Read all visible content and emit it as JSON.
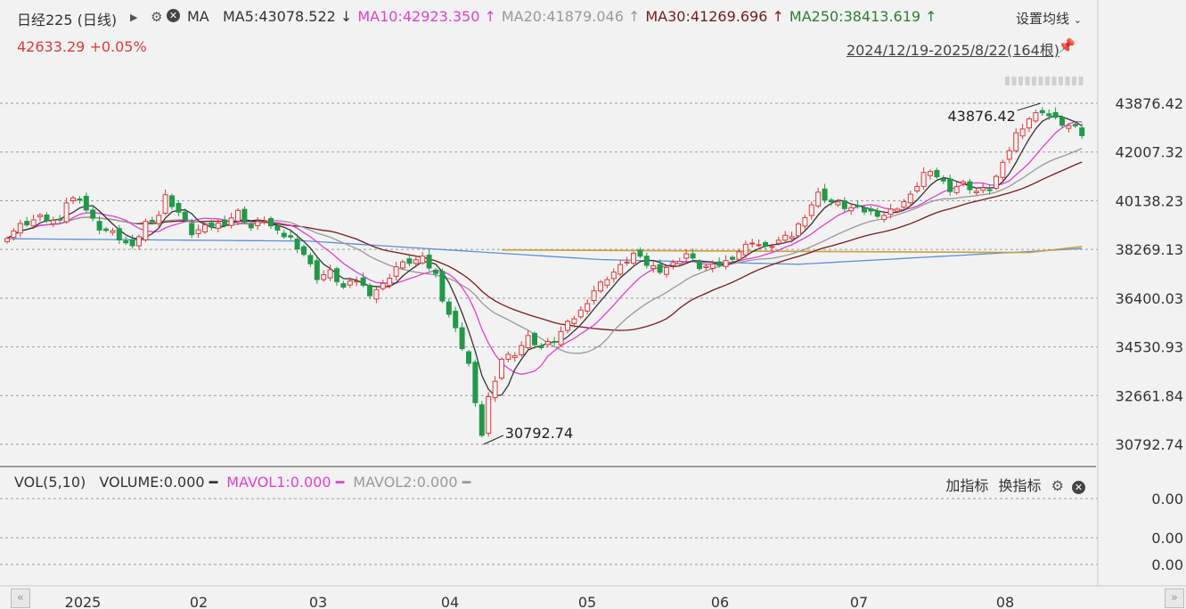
{
  "header": {
    "instrument": "日经225 (日线)",
    "indicator": "MA",
    "settings_label": "设置均线",
    "ma_items": [
      {
        "label": "MA5:43078.522 ↓",
        "color": "#333333"
      },
      {
        "label": "MA10:42923.350 ↑",
        "color": "#e040d0"
      },
      {
        "label": "MA20:41879.046 ↑",
        "color": "#999999"
      },
      {
        "label": "MA30:41269.696 ↑",
        "color": "#7a1a1a"
      },
      {
        "label": "MA250:38413.619 ↑",
        "color": "#2e7d32"
      }
    ]
  },
  "price_info": {
    "last": "42633.29",
    "change": "+0.05%"
  },
  "range_info": "2024/12/19-2025/8/22(164根)",
  "volume_panel": {
    "title": "VOL(5,10)",
    "items": [
      {
        "label": "VOLUME:0.000",
        "color": "#333333"
      },
      {
        "label": "MAVOL1:0.000",
        "color": "#e040d0"
      },
      {
        "label": "MAVOL2:0.000",
        "color": "#999999"
      }
    ],
    "add_indicator": "加指标",
    "switch_indicator": "换指标",
    "y_ticks": [
      "0.00",
      "0.00",
      "0.00"
    ]
  },
  "chart_data": {
    "type": "candlestick",
    "y_ticks": [
      "43876.42",
      "42007.32",
      "40138.23",
      "38269.13",
      "36400.03",
      "34530.93",
      "32661.84",
      "30792.74"
    ],
    "ylim": [
      30792.74,
      43876.42
    ],
    "x_labels": [
      "2025",
      "02",
      "03",
      "04",
      "05",
      "06",
      "07",
      "08"
    ],
    "annotations": [
      {
        "text": "43876.42",
        "type": "high"
      },
      {
        "text": "30792.74",
        "type": "low"
      }
    ],
    "colors": {
      "up": "#e0383b",
      "down": "#1f9a4a",
      "ma5": "#333333",
      "ma10": "#e040d0",
      "ma20": "#999999",
      "ma30": "#7a1a1a",
      "ma250": "#5b8fd9",
      "level": "#c9a13b"
    },
    "close_anchors": [
      [
        0,
        38800
      ],
      [
        2,
        39200
      ],
      [
        5,
        39500
      ],
      [
        8,
        39300
      ],
      [
        9,
        40100
      ],
      [
        11,
        40300
      ],
      [
        12,
        39800
      ],
      [
        13,
        39400
      ],
      [
        14,
        39100
      ],
      [
        16,
        38900
      ],
      [
        19,
        38300
      ],
      [
        21,
        39300
      ],
      [
        23,
        39600
      ],
      [
        24,
        40300
      ],
      [
        26,
        39700
      ],
      [
        28,
        38900
      ],
      [
        30,
        39100
      ],
      [
        33,
        39300
      ],
      [
        35,
        39700
      ],
      [
        37,
        39100
      ],
      [
        39,
        39400
      ],
      [
        41,
        38900
      ],
      [
        43,
        38700
      ],
      [
        45,
        38100
      ],
      [
        47,
        37200
      ],
      [
        49,
        37400
      ],
      [
        51,
        36800
      ],
      [
        53,
        37100
      ],
      [
        55,
        36600
      ],
      [
        57,
        36900
      ],
      [
        59,
        37600
      ],
      [
        61,
        37800
      ],
      [
        63,
        37900
      ],
      [
        65,
        37300
      ],
      [
        66,
        36400
      ],
      [
        68,
        35200
      ],
      [
        70,
        33900
      ],
      [
        71,
        32300
      ],
      [
        72,
        31200
      ],
      [
        73,
        32600
      ],
      [
        74,
        33100
      ],
      [
        75,
        34100
      ],
      [
        77,
        34300
      ],
      [
        79,
        34900
      ],
      [
        81,
        34500
      ],
      [
        83,
        34800
      ],
      [
        85,
        35400
      ],
      [
        87,
        35900
      ],
      [
        89,
        36700
      ],
      [
        91,
        37200
      ],
      [
        93,
        37600
      ],
      [
        95,
        38100
      ],
      [
        97,
        37700
      ],
      [
        99,
        37500
      ],
      [
        101,
        37700
      ],
      [
        103,
        38100
      ],
      [
        105,
        37600
      ],
      [
        107,
        37600
      ],
      [
        109,
        37800
      ],
      [
        111,
        38200
      ],
      [
        113,
        38600
      ],
      [
        115,
        38300
      ],
      [
        117,
        38600
      ],
      [
        119,
        38800
      ],
      [
        121,
        39600
      ],
      [
        123,
        40400
      ],
      [
        125,
        40100
      ],
      [
        127,
        39900
      ],
      [
        129,
        39800
      ],
      [
        131,
        39700
      ],
      [
        133,
        39600
      ],
      [
        135,
        39900
      ],
      [
        137,
        40300
      ],
      [
        139,
        41200
      ],
      [
        141,
        41100
      ],
      [
        143,
        40600
      ],
      [
        145,
        40800
      ],
      [
        147,
        40500
      ],
      [
        149,
        40600
      ],
      [
        151,
        41500
      ],
      [
        153,
        42700
      ],
      [
        155,
        43300
      ],
      [
        157,
        43600
      ],
      [
        158,
        43400
      ],
      [
        160,
        43100
      ],
      [
        162,
        42900
      ],
      [
        163,
        42633
      ]
    ]
  }
}
